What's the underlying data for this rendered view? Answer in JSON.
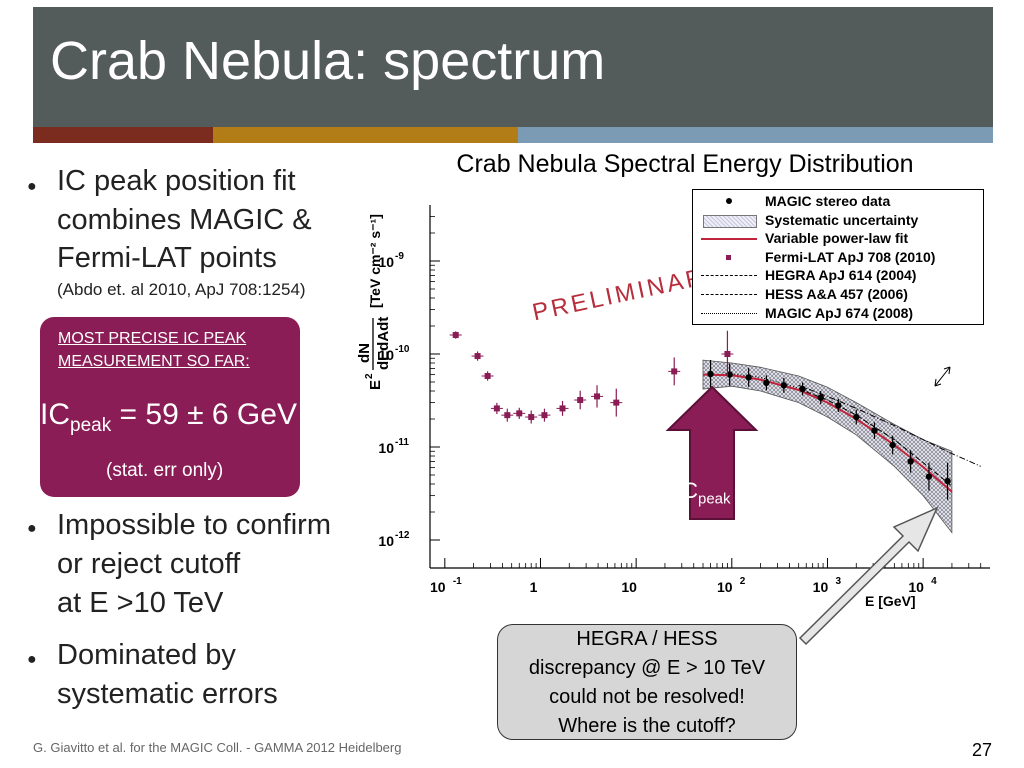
{
  "slide": {
    "title": "Crab Nebula: spectrum",
    "footer": "G. Giavitto et al. for the MAGIC Coll. - GAMMA 2012 Heidelberg",
    "page_number": "27",
    "accent_colors": [
      "#7b2c1f",
      "#b27c17",
      "#7b9bb5"
    ],
    "bullets": [
      {
        "lines": [
          "IC peak position fit",
          "combines MAGIC &",
          "Fermi-LAT points"
        ],
        "note": "(Abdo et. al 2010, ApJ 708:1254)"
      },
      {
        "lines": [
          "Impossible to confirm",
          "or reject cutoff",
          "at E >10 TeV"
        ]
      },
      {
        "lines": [
          "Dominated by",
          "systematic errors"
        ]
      }
    ],
    "highlight_box": {
      "heading_line1": "MOST PRECISE IC PEAK",
      "heading_line2": "MEASUREMENT SO FAR:",
      "ic_main": "IC",
      "ic_sub": "peak",
      "ic_value": "= 59 ± 6 GeV",
      "stat_note": "(stat. err only)"
    },
    "callout": {
      "lines": [
        "HEGRA / HESS",
        "discrepancy @ E > 10 TeV",
        "could not be resolved!",
        "Where is the cutoff?"
      ]
    },
    "ic_peak_arrow": {
      "main": "IC",
      "sub": "peak"
    },
    "preliminary": "PRELIMINARY"
  },
  "chart_data": {
    "type": "scatter",
    "title": "Crab Nebula Spectral Energy Distribution",
    "xlabel": "E [GeV]",
    "ylabel_num": "dN",
    "ylabel_den": "dEdAdt",
    "ylabel_prefix": "E",
    "ylabel_exp": "2",
    "ylabel_units": "[TeV cm⁻² s⁻¹]",
    "x_log": true,
    "y_log": true,
    "xlim": [
      0.07,
      50000
    ],
    "ylim": [
      5e-13,
      4e-09
    ],
    "x_ticks": [
      {
        "value": 0.1,
        "base": "10",
        "exp": "-1"
      },
      {
        "value": 1,
        "base": "1",
        "exp": ""
      },
      {
        "value": 10,
        "base": "10",
        "exp": ""
      },
      {
        "value": 100,
        "base": "10",
        "exp": "2"
      },
      {
        "value": 1000,
        "base": "10",
        "exp": "3"
      },
      {
        "value": 10000,
        "base": "10",
        "exp": "4"
      }
    ],
    "y_ticks": [
      {
        "value": 1e-09,
        "base": "10",
        "exp": "-9"
      },
      {
        "value": 1e-10,
        "base": "10",
        "exp": "-10"
      },
      {
        "value": 1e-11,
        "base": "10",
        "exp": "-11"
      },
      {
        "value": 1e-12,
        "base": "10",
        "exp": "-12"
      }
    ],
    "legend": {
      "position": "top-right",
      "entries": [
        "MAGIC stereo data",
        "Systematic uncertainty",
        "Variable power-law fit",
        "Fermi-LAT ApJ 708 (2010)",
        "HEGRA ApJ 614 (2004)",
        "HESS  A&A 457 (2006)",
        "MAGIC ApJ 674 (2008)"
      ]
    },
    "series": [
      {
        "name": "MAGIC stereo data",
        "color": "#000000",
        "points": [
          {
            "x": 60,
            "y": 6.1e-11,
            "err": 0.15
          },
          {
            "x": 95,
            "y": 6e-11,
            "err": 0.12
          },
          {
            "x": 150,
            "y": 5.6e-11,
            "err": 0.1
          },
          {
            "x": 230,
            "y": 4.9e-11,
            "err": 0.08
          },
          {
            "x": 350,
            "y": 4.6e-11,
            "err": 0.08
          },
          {
            "x": 550,
            "y": 4.2e-11,
            "err": 0.07
          },
          {
            "x": 850,
            "y": 3.4e-11,
            "err": 0.07
          },
          {
            "x": 1300,
            "y": 2.8e-11,
            "err": 0.07
          },
          {
            "x": 2000,
            "y": 2.1e-11,
            "err": 0.08
          },
          {
            "x": 3100,
            "y": 1.5e-11,
            "err": 0.09
          },
          {
            "x": 4800,
            "y": 1.05e-11,
            "err": 0.1
          },
          {
            "x": 7400,
            "y": 7e-12,
            "err": 0.12
          },
          {
            "x": 11500,
            "y": 4.8e-12,
            "err": 0.15
          },
          {
            "x": 18000,
            "y": 4.3e-12,
            "err": 0.2
          }
        ]
      },
      {
        "name": "Fermi-LAT ApJ 708 (2010)",
        "color": "#8a1d55",
        "points": [
          {
            "x": 0.13,
            "y": 1.6e-10,
            "err": 0.04
          },
          {
            "x": 0.22,
            "y": 9.5e-11,
            "err": 0.05
          },
          {
            "x": 0.28,
            "y": 5.8e-11,
            "err": 0.05
          },
          {
            "x": 0.35,
            "y": 2.6e-11,
            "err": 0.06
          },
          {
            "x": 0.45,
            "y": 2.2e-11,
            "err": 0.07
          },
          {
            "x": 0.6,
            "y": 2.3e-11,
            "err": 0.06
          },
          {
            "x": 0.8,
            "y": 2.1e-11,
            "err": 0.07
          },
          {
            "x": 1.1,
            "y": 2.2e-11,
            "err": 0.07
          },
          {
            "x": 1.7,
            "y": 2.6e-11,
            "err": 0.08
          },
          {
            "x": 2.6,
            "y": 3.2e-11,
            "err": 0.1
          },
          {
            "x": 3.9,
            "y": 3.5e-11,
            "err": 0.12
          },
          {
            "x": 6.2,
            "y": 3e-11,
            "err": 0.15
          },
          {
            "x": 25,
            "y": 6.5e-11,
            "err": 0.15
          },
          {
            "x": 90,
            "y": 1e-10,
            "err": 0.25
          }
        ]
      }
    ],
    "fit": {
      "name": "Variable power-law fit",
      "color": "#c0243c",
      "points": [
        {
          "x": 50,
          "y": 6e-11
        },
        {
          "x": 100,
          "y": 5.9e-11
        },
        {
          "x": 200,
          "y": 5.3e-11
        },
        {
          "x": 500,
          "y": 4.1e-11
        },
        {
          "x": 1000,
          "y": 3e-11
        },
        {
          "x": 2000,
          "y": 2e-11
        },
        {
          "x": 5000,
          "y": 1.05e-11
        },
        {
          "x": 10000,
          "y": 6.1e-12
        },
        {
          "x": 20000,
          "y": 3.3e-12
        }
      ]
    },
    "systematic_band": [
      {
        "x": 50,
        "lo": 4.2e-11,
        "hi": 8.6e-11
      },
      {
        "x": 100,
        "lo": 4.5e-11,
        "hi": 8e-11
      },
      {
        "x": 200,
        "lo": 4e-11,
        "hi": 7.2e-11
      },
      {
        "x": 500,
        "lo": 3e-11,
        "hi": 5.8e-11
      },
      {
        "x": 1000,
        "lo": 2.1e-11,
        "hi": 4.4e-11
      },
      {
        "x": 2000,
        "lo": 1.35e-11,
        "hi": 3e-11
      },
      {
        "x": 5000,
        "lo": 6.2e-12,
        "hi": 1.75e-11
      },
      {
        "x": 10000,
        "lo": 3e-12,
        "hi": 1.2e-11
      },
      {
        "x": 20000,
        "lo": 1.2e-12,
        "hi": 9e-12
      }
    ],
    "comparison_lines": [
      {
        "name": "HEGRA ApJ 614 (2004)",
        "dash": "6,2,1,2",
        "points": [
          {
            "x": 500,
            "y": 4.6e-11
          },
          {
            "x": 1000,
            "y": 3.5e-11
          },
          {
            "x": 2000,
            "y": 2.6e-11
          },
          {
            "x": 5000,
            "y": 1.7e-11
          },
          {
            "x": 10000,
            "y": 1.2e-11
          },
          {
            "x": 20000,
            "y": 8.5e-12
          },
          {
            "x": 40000,
            "y": 6.2e-12
          }
        ]
      },
      {
        "name": "HESS  A&A 457 (2006)",
        "dash": "5,3",
        "points": [
          {
            "x": 500,
            "y": 4.2e-11
          },
          {
            "x": 1000,
            "y": 3.2e-11
          },
          {
            "x": 2000,
            "y": 2.2e-11
          },
          {
            "x": 5000,
            "y": 1.2e-11
          },
          {
            "x": 10000,
            "y": 6.8e-12
          },
          {
            "x": 20000,
            "y": 3.8e-12
          }
        ]
      },
      {
        "name": "MAGIC ApJ 674 (2008)",
        "dash": "1,2",
        "points": [
          {
            "x": 80,
            "y": 6.3e-11
          },
          {
            "x": 200,
            "y": 5.6e-11
          },
          {
            "x": 500,
            "y": 4.3e-11
          },
          {
            "x": 1000,
            "y": 3.2e-11
          },
          {
            "x": 2000,
            "y": 2.2e-11
          },
          {
            "x": 5000,
            "y": 1.2e-11
          },
          {
            "x": 8000,
            "y": 8e-12
          }
        ]
      }
    ]
  }
}
